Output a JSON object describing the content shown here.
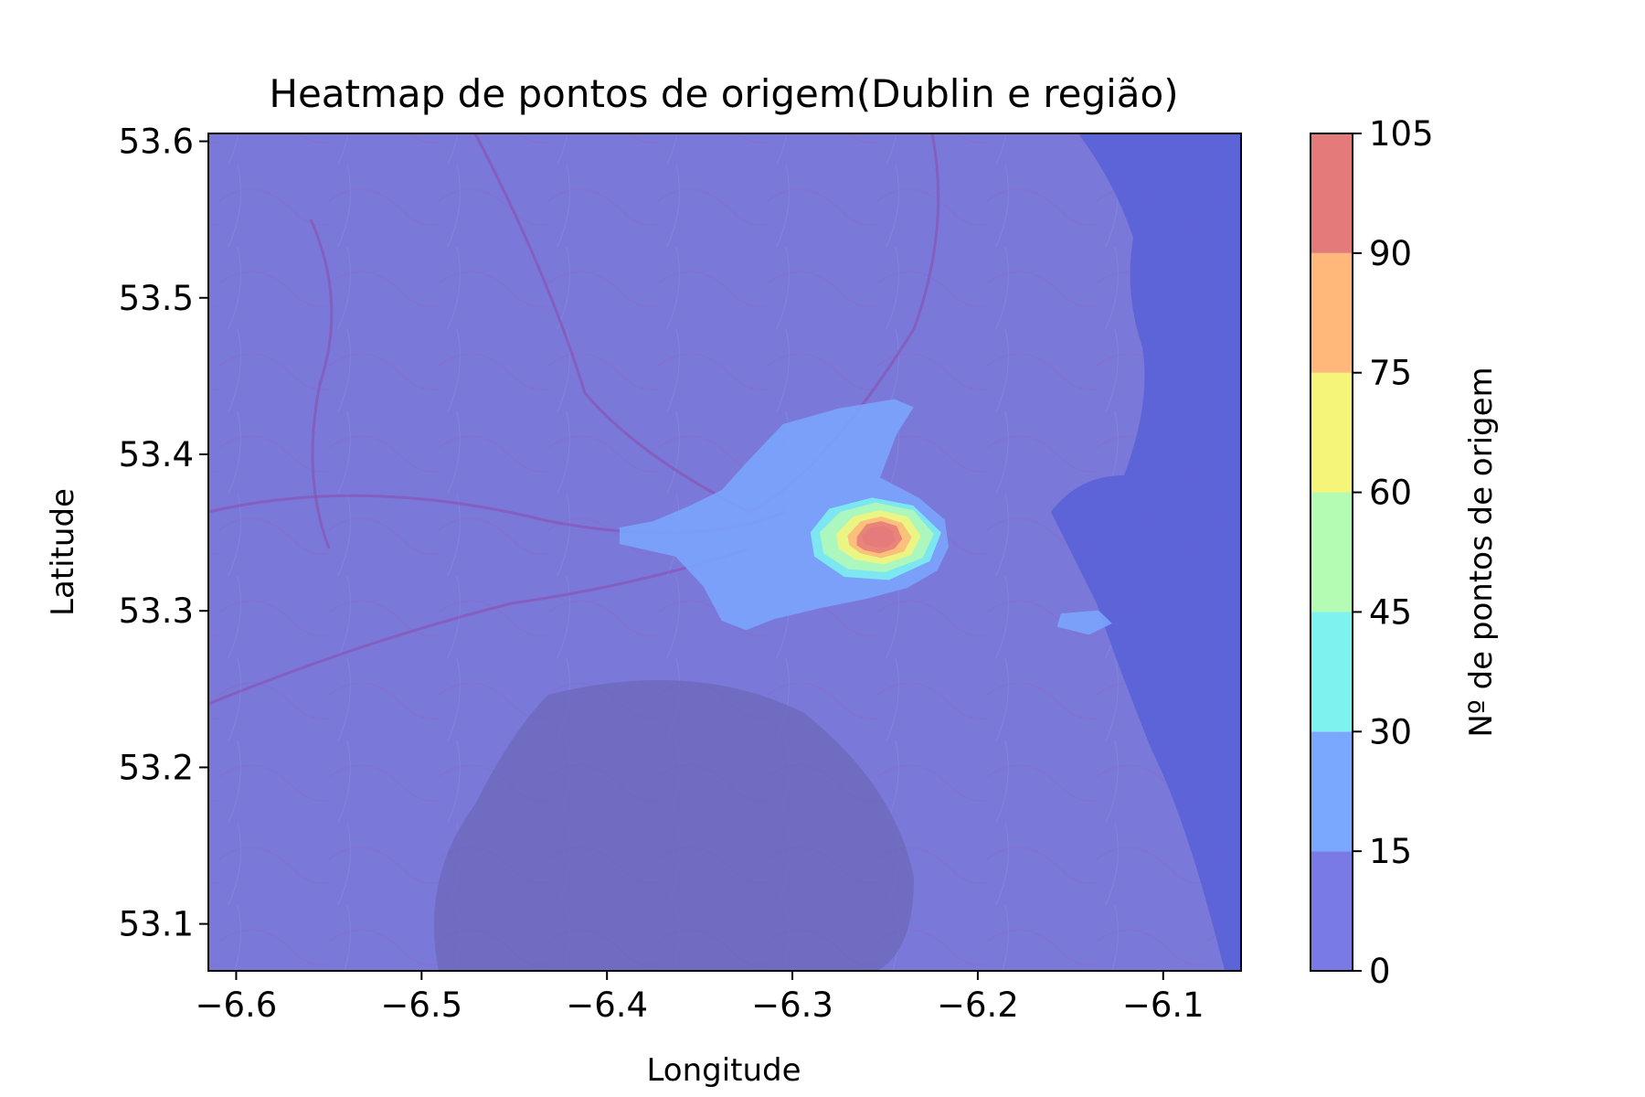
{
  "chart_data": {
    "type": "heatmap",
    "title": "Heatmap de pontos de origem(Dublin e região)",
    "xlabel": "Longitude",
    "ylabel": "Latitude",
    "xlim": [
      -6.615,
      -6.058
    ],
    "ylim": [
      53.07,
      53.605
    ],
    "x_ticks": [
      -6.6,
      -6.5,
      -6.4,
      -6.3,
      -6.2,
      -6.1
    ],
    "x_tick_labels": [
      "−6.6",
      "−6.5",
      "−6.4",
      "−6.3",
      "−6.2",
      "−6.1"
    ],
    "y_ticks": [
      53.1,
      53.2,
      53.3,
      53.4,
      53.5,
      53.6
    ],
    "y_tick_labels": [
      "53.1",
      "53.2",
      "53.3",
      "53.4",
      "53.5",
      "53.6"
    ],
    "colorbar": {
      "label": "Nº de pontos de origem",
      "levels": [
        0,
        15,
        30,
        45,
        60,
        75,
        90,
        105
      ],
      "level_labels": [
        "0",
        "15",
        "30",
        "45",
        "60",
        "75",
        "90",
        "105"
      ],
      "colors": [
        "#7a7ae6",
        "#7aa8ff",
        "#7df3f0",
        "#b4fbb4",
        "#f5f57a",
        "#ffb87a",
        "#e57a7a"
      ]
    },
    "contours": [
      {
        "level": 15,
        "points": [
          [
            -6.393,
            53.353
          ],
          [
            -6.375,
            53.357
          ],
          [
            -6.355,
            53.367
          ],
          [
            -6.338,
            53.377
          ],
          [
            -6.325,
            53.394
          ],
          [
            -6.305,
            53.419
          ],
          [
            -6.275,
            53.429
          ],
          [
            -6.245,
            53.435
          ],
          [
            -6.235,
            53.43
          ],
          [
            -6.244,
            53.413
          ],
          [
            -6.253,
            53.385
          ],
          [
            -6.232,
            53.372
          ],
          [
            -6.218,
            53.358
          ],
          [
            -6.216,
            53.341
          ],
          [
            -6.222,
            53.326
          ],
          [
            -6.238,
            53.315
          ],
          [
            -6.26,
            53.308
          ],
          [
            -6.285,
            53.302
          ],
          [
            -6.31,
            53.295
          ],
          [
            -6.325,
            53.288
          ],
          [
            -6.338,
            53.294
          ],
          [
            -6.348,
            53.316
          ],
          [
            -6.363,
            53.335
          ],
          [
            -6.393,
            53.343
          ]
        ]
      },
      {
        "level": 15,
        "points": [
          [
            -6.155,
            53.298
          ],
          [
            -6.135,
            53.3
          ],
          [
            -6.128,
            53.292
          ],
          [
            -6.14,
            53.285
          ],
          [
            -6.157,
            53.29
          ]
        ]
      },
      {
        "level": 30,
        "points": [
          [
            -6.29,
            53.35
          ],
          [
            -6.28,
            53.365
          ],
          [
            -6.257,
            53.372
          ],
          [
            -6.235,
            53.367
          ],
          [
            -6.22,
            53.35
          ],
          [
            -6.226,
            53.332
          ],
          [
            -6.248,
            53.32
          ],
          [
            -6.272,
            53.322
          ],
          [
            -6.288,
            53.335
          ]
        ]
      },
      {
        "level": 45,
        "points": [
          [
            -6.285,
            53.35
          ],
          [
            -6.274,
            53.363
          ],
          [
            -6.255,
            53.369
          ],
          [
            -6.235,
            53.364
          ],
          [
            -6.224,
            53.349
          ],
          [
            -6.23,
            53.334
          ],
          [
            -6.25,
            53.325
          ],
          [
            -6.27,
            53.327
          ],
          [
            -6.283,
            53.337
          ]
        ]
      },
      {
        "level": 60,
        "points": [
          [
            -6.276,
            53.349
          ],
          [
            -6.267,
            53.36
          ],
          [
            -6.253,
            53.364
          ],
          [
            -6.238,
            53.36
          ],
          [
            -6.231,
            53.348
          ],
          [
            -6.236,
            53.336
          ],
          [
            -6.251,
            53.33
          ],
          [
            -6.266,
            53.333
          ],
          [
            -6.275,
            53.34
          ]
        ]
      },
      {
        "level": 75,
        "points": [
          [
            -6.27,
            53.348
          ],
          [
            -6.263,
            53.357
          ],
          [
            -6.252,
            53.36
          ],
          [
            -6.241,
            53.356
          ],
          [
            -6.236,
            53.347
          ],
          [
            -6.24,
            53.338
          ],
          [
            -6.252,
            53.334
          ],
          [
            -6.263,
            53.337
          ],
          [
            -6.269,
            53.342
          ]
        ]
      },
      {
        "level": 90,
        "points": [
          [
            -6.265,
            53.347
          ],
          [
            -6.26,
            53.355
          ],
          [
            -6.252,
            53.357
          ],
          [
            -6.244,
            53.354
          ],
          [
            -6.241,
            53.346
          ],
          [
            -6.245,
            53.34
          ],
          [
            -6.253,
            53.337
          ],
          [
            -6.261,
            53.339
          ],
          [
            -6.265,
            53.342
          ]
        ]
      },
      {
        "level": 105,
        "points": [
          [
            -6.262,
            53.348
          ],
          [
            -6.257,
            53.353
          ],
          [
            -6.251,
            53.354
          ],
          [
            -6.246,
            53.351
          ],
          [
            -6.245,
            53.345
          ],
          [
            -6.249,
            53.341
          ],
          [
            -6.255,
            53.341
          ],
          [
            -6.261,
            53.343
          ]
        ]
      }
    ]
  }
}
